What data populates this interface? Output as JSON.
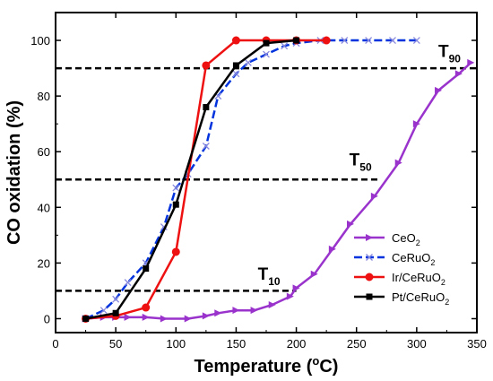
{
  "chart_data": {
    "type": "line",
    "xlabel": "Temperature",
    "xlabel_unit_open": " (",
    "xlabel_unit_sup": "o",
    "xlabel_unit_close": "C)",
    "ylabel": "CO oxidation (%)",
    "xlim": [
      0,
      350
    ],
    "ylim": [
      -5,
      110
    ],
    "xticks": [
      0,
      50,
      100,
      150,
      200,
      250,
      300,
      350
    ],
    "yticks": [
      0,
      20,
      40,
      60,
      80,
      100
    ],
    "legend_position": "bottom-right",
    "series": [
      {
        "name": "CeO2",
        "name_main": "CeO",
        "name_sub": "2",
        "name_tail": "",
        "color": "#9933CC",
        "marker": "triangle-right",
        "x": [
          25,
          40,
          50,
          60,
          75,
          90,
          110,
          125,
          135,
          150,
          165,
          180,
          195,
          200,
          215,
          230,
          245,
          265,
          285,
          300,
          318,
          335,
          345
        ],
        "y": [
          0,
          0.5,
          0.5,
          0.5,
          0.5,
          0,
          0,
          1,
          2,
          3,
          3,
          5,
          8,
          11,
          16,
          25,
          34,
          44,
          56,
          70,
          82,
          88,
          92
        ]
      },
      {
        "name": "CeRuO2",
        "name_main": "CeRuO",
        "name_sub": "2",
        "name_tail": "",
        "color": "#0033DD",
        "marker": "x",
        "x": [
          25,
          40,
          50,
          60,
          75,
          90,
          100,
          110,
          125,
          135,
          150,
          160,
          175,
          190,
          200,
          220,
          240,
          260,
          280,
          300
        ],
        "y": [
          0,
          3,
          7,
          13,
          20,
          33,
          47,
          52,
          62,
          80,
          88,
          92,
          95,
          98,
          99,
          100,
          100,
          100,
          100,
          100
        ]
      },
      {
        "name": "Ir/CeRuO2",
        "name_main": "Ir/CeRuO",
        "name_sub": "2",
        "name_tail": "",
        "color": "#EE1111",
        "marker": "circle",
        "x": [
          25,
          50,
          75,
          100,
          125,
          150,
          175,
          200,
          225
        ],
        "y": [
          0,
          1,
          4,
          24,
          91,
          100,
          100,
          100,
          100
        ]
      },
      {
        "name": "Pt/CeRuO2",
        "name_main": "Pt/CeRuO",
        "name_sub": "2",
        "name_tail": "",
        "color": "#000000",
        "marker": "square",
        "x": [
          25,
          50,
          75,
          100,
          125,
          150,
          175,
          200
        ],
        "y": [
          0,
          2,
          18,
          41,
          76,
          91,
          99,
          100
        ]
      }
    ],
    "reference_lines": [
      {
        "name": "T90",
        "y": 90,
        "x_start": 0,
        "x_end": 350
      },
      {
        "name": "T50",
        "y": 50,
        "x_start": 0,
        "x_end": 270
      },
      {
        "name": "T10",
        "y": 10,
        "x_start": 0,
        "x_end": 200
      }
    ],
    "annotations": [
      {
        "main": "T",
        "sub": "90",
        "x": 318,
        "y": 94
      },
      {
        "main": "T",
        "sub": "50",
        "x": 244,
        "y": 55
      },
      {
        "main": "T",
        "sub": "10",
        "x": 168,
        "y": 14
      }
    ]
  }
}
